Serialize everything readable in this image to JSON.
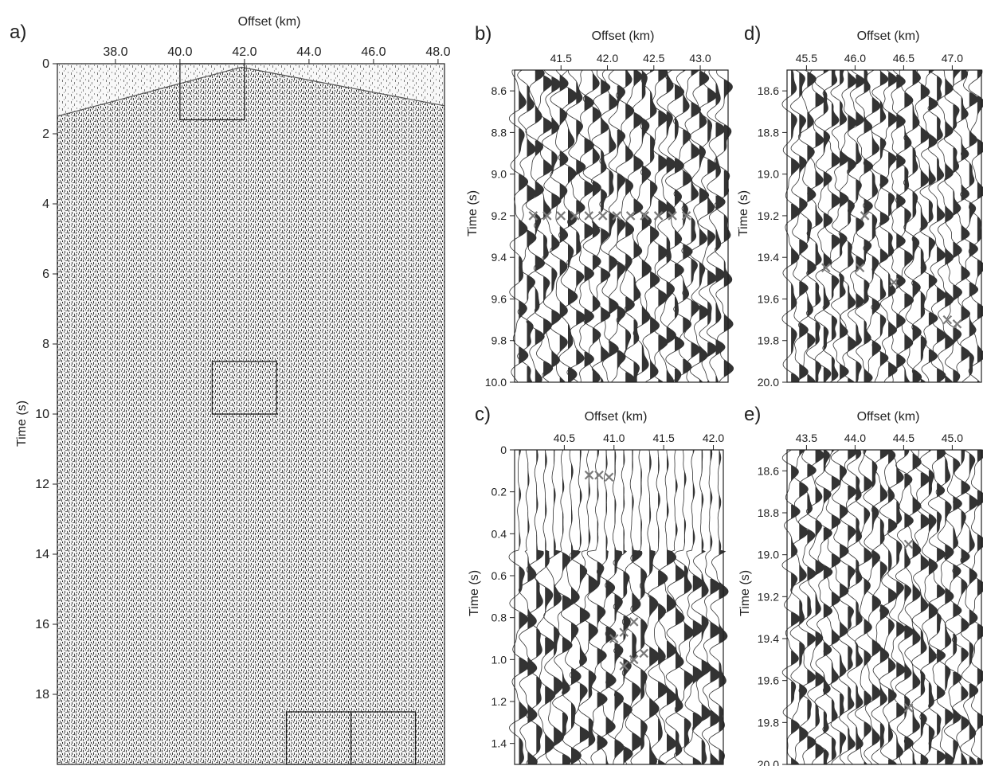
{
  "chart_data": [
    {
      "id": "a",
      "panel_label": "a)",
      "type": "seismic",
      "xlabel": "Offset (km)",
      "ylabel": "Time (s)",
      "x_axis_position": "top",
      "xlim": [
        36.2,
        48.2
      ],
      "ylim": [
        0,
        20
      ],
      "x_ticks": [
        "38.0",
        "40.0",
        "42.0",
        "44.0",
        "46.0",
        "48.0"
      ],
      "y_ticks": [
        "0",
        "2",
        "4",
        "6",
        "8",
        "10",
        "12",
        "14",
        "16",
        "18"
      ],
      "first_arrival": [
        [
          36.2,
          1.5
        ],
        [
          41.9,
          0.1
        ],
        [
          48.2,
          1.2
        ]
      ],
      "highlight_boxes": [
        {
          "x": [
            40.0,
            42.0
          ],
          "t": [
            0.0,
            1.6
          ]
        },
        {
          "x": [
            41.0,
            43.0
          ],
          "t": [
            8.5,
            10.0
          ]
        },
        {
          "x": [
            43.3,
            45.3
          ],
          "t": [
            18.5,
            20.0
          ]
        },
        {
          "x": [
            45.3,
            47.3
          ],
          "t": [
            18.5,
            20.0
          ]
        }
      ]
    },
    {
      "id": "b",
      "panel_label": "b)",
      "type": "seismic",
      "xlabel": "Offset (km)",
      "ylabel": "Time (s)",
      "x_axis_position": "top",
      "xlim": [
        41.0,
        43.3
      ],
      "ylim": [
        8.5,
        10.0
      ],
      "x_ticks": [
        "41.5",
        "42.0",
        "42.5",
        "43.0"
      ],
      "y_ticks": [
        "8.6",
        "8.8",
        "9.0",
        "9.2",
        "9.4",
        "9.6",
        "9.8",
        "10.0"
      ],
      "picks": [
        [
          41.2,
          9.2
        ],
        [
          41.35,
          9.2
        ],
        [
          41.5,
          9.2
        ],
        [
          41.65,
          9.2
        ],
        [
          41.8,
          9.2
        ],
        [
          41.95,
          9.2
        ],
        [
          42.1,
          9.2
        ],
        [
          42.25,
          9.2
        ],
        [
          42.4,
          9.2
        ],
        [
          42.55,
          9.2
        ],
        [
          42.7,
          9.2
        ],
        [
          42.85,
          9.2
        ]
      ]
    },
    {
      "id": "c",
      "panel_label": "c)",
      "type": "seismic",
      "xlabel": "Offset (km)",
      "ylabel": "Time (s)",
      "x_axis_position": "top",
      "xlim": [
        40.0,
        42.1
      ],
      "ylim": [
        0.0,
        1.5
      ],
      "x_ticks": [
        "40.5",
        "41.0",
        "41.5",
        "42.0"
      ],
      "y_ticks": [
        "0",
        "0.2",
        "0.4",
        "0.6",
        "0.8",
        "1.0",
        "1.2",
        "1.4"
      ],
      "picks": [
        [
          40.75,
          0.12
        ],
        [
          40.85,
          0.12
        ],
        [
          40.95,
          0.13
        ],
        [
          41.0,
          0.9
        ],
        [
          41.1,
          0.87
        ],
        [
          41.2,
          0.82
        ],
        [
          41.1,
          1.03
        ],
        [
          41.2,
          1.0
        ],
        [
          41.3,
          0.97
        ]
      ]
    },
    {
      "id": "d",
      "panel_label": "d)",
      "type": "seismic",
      "xlabel": "Offset (km)",
      "ylabel": "Time (s)",
      "x_axis_position": "top",
      "xlim": [
        45.3,
        47.3
      ],
      "ylim": [
        18.5,
        20.0
      ],
      "x_ticks": [
        "45.5",
        "46.0",
        "46.5",
        "47.0"
      ],
      "y_ticks": [
        "18.6",
        "18.8",
        "19.0",
        "19.2",
        "19.4",
        "19.6",
        "19.8",
        "20.0"
      ],
      "picks": [
        [
          46.1,
          19.2
        ],
        [
          45.7,
          19.45
        ],
        [
          46.05,
          19.45
        ],
        [
          46.4,
          19.52
        ],
        [
          46.95,
          19.7
        ],
        [
          47.05,
          19.72
        ]
      ]
    },
    {
      "id": "e",
      "panel_label": "e)",
      "type": "seismic",
      "xlabel": "Offset (km)",
      "ylabel": "Time (s)",
      "x_axis_position": "top",
      "xlim": [
        43.3,
        45.3
      ],
      "ylim": [
        18.5,
        20.0
      ],
      "x_ticks": [
        "43.5",
        "44.0",
        "44.5",
        "45.0"
      ],
      "y_ticks": [
        "18.6",
        "18.8",
        "19.0",
        "19.2",
        "19.4",
        "19.6",
        "19.8",
        "20.0"
      ],
      "picks": [
        [
          44.55,
          18.95
        ],
        [
          44.55,
          19.73
        ]
      ]
    }
  ]
}
